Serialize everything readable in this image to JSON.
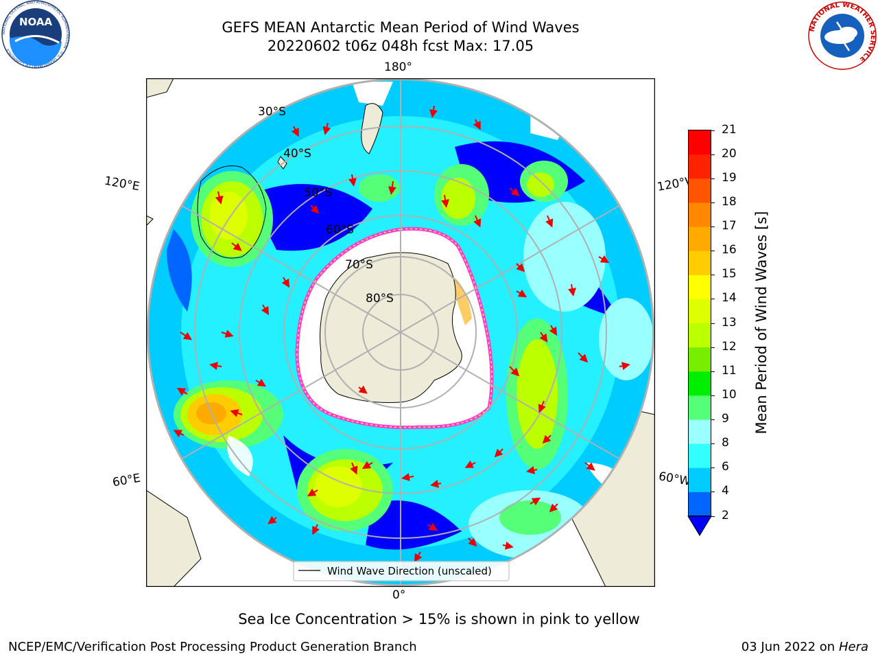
{
  "title": {
    "line1": "GEFS MEAN Antarctic Mean Period of Wind Waves",
    "line2": "20220602 t06z 048h fcst   Max: 17.05"
  },
  "map": {
    "type": "south-polar-stereographic",
    "longitude_labels": [
      "180°",
      "120°E",
      "120°W",
      "60°E",
      "60°W",
      "0°"
    ],
    "latitude_labels": [
      "30°S",
      "40°S",
      "50°S",
      "60°S",
      "70°S",
      "80°S"
    ],
    "legend_label": "Wind Wave Direction (unscaled)",
    "colors": {
      "land": "#efebd9",
      "ice": "#ffffff",
      "ice_edge": "#ff3bd0",
      "arrow": "#ee0000",
      "grid": "#b0b0b0"
    }
  },
  "colorbar": {
    "label": "Mean Period of Wind Waves [s]",
    "ticks": [
      "2",
      "4",
      "6",
      "8",
      "9",
      "10",
      "11",
      "12",
      "13",
      "14",
      "15",
      "16",
      "17",
      "18",
      "19",
      "20",
      "21"
    ],
    "colors": [
      "#0000ff",
      "#0066ff",
      "#00ccff",
      "#33ffff",
      "#99ffff",
      "#55ff77",
      "#00ee00",
      "#77ee00",
      "#bbff00",
      "#ddff00",
      "#ffff00",
      "#ffcc00",
      "#ffaa00",
      "#ff8800",
      "#ff5500",
      "#ff2200",
      "#ff0000"
    ],
    "extend": "min"
  },
  "footer": {
    "note": "Sea Ice Concentration > 15% is shown in pink to yellow",
    "branch": "NCEP/EMC/Verification Post Processing Product Generation Branch",
    "date": "03 Jun 2022 on",
    "machine": "Hera"
  },
  "logos": {
    "noaa": "NOAA",
    "noaa_ring": "NATIONAL OCEANIC AND ATMOSPHERIC ADMINISTRATION · U.S. DEPARTMENT OF COMMERCE",
    "nws_ring": "NATIONAL WEATHER SERVICE"
  }
}
